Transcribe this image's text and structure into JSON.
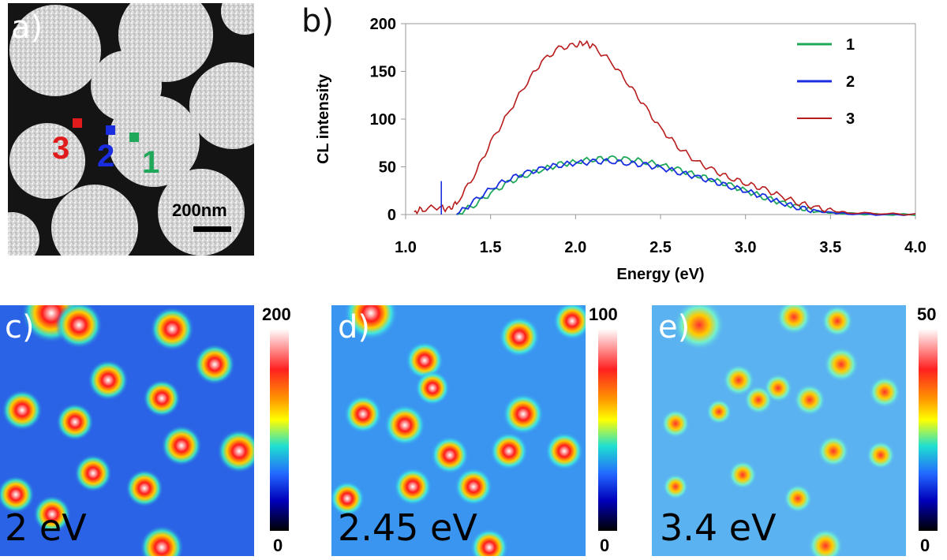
{
  "panels": {
    "a": {
      "label": "a)",
      "scale_bar_label": "200nm",
      "markers": [
        {
          "label": "3",
          "color": "#e11b1b"
        },
        {
          "label": "2",
          "color": "#1a2ee0"
        },
        {
          "label": "1",
          "color": "#1fa85a"
        }
      ]
    },
    "b": {
      "label": "b)"
    },
    "c": {
      "label": "c)",
      "energy": "2 eV",
      "cbar_max": "200",
      "cbar_min": "0"
    },
    "d": {
      "label": "d)",
      "energy": "2.45 eV",
      "cbar_max": "100",
      "cbar_min": "0"
    },
    "e": {
      "label": "e)",
      "energy": "3.4 eV",
      "cbar_max": "50",
      "cbar_min": "0"
    }
  },
  "chart_data": {
    "type": "line",
    "title": "",
    "xlabel": "Energy (eV)",
    "ylabel": "CL intensity",
    "xlim": [
      1.0,
      4.0
    ],
    "ylim": [
      0,
      200
    ],
    "xticks": [
      "1.0",
      "1.5",
      "2.0",
      "2.5",
      "3.0",
      "3.5",
      "4.0"
    ],
    "yticks": [
      "0",
      "50",
      "100",
      "150",
      "200"
    ],
    "legend_position": "top-right",
    "series": [
      {
        "name": "1",
        "color": "#1fa85a",
        "x": [
          1.3,
          1.4,
          1.5,
          1.6,
          1.7,
          1.8,
          1.9,
          2.0,
          2.1,
          2.2,
          2.3,
          2.4,
          2.5,
          2.6,
          2.7,
          2.8,
          2.9,
          3.0,
          3.1,
          3.2,
          3.3,
          3.4,
          3.5,
          3.6,
          3.8,
          4.0
        ],
        "y": [
          0,
          10,
          22,
          33,
          41,
          47,
          52,
          55,
          58,
          59,
          58,
          56,
          52,
          47,
          42,
          37,
          31,
          25,
          19,
          13,
          8,
          4,
          2,
          1,
          0,
          0
        ]
      },
      {
        "name": "2",
        "color": "#1a2ee0",
        "x": [
          1.3,
          1.4,
          1.5,
          1.6,
          1.7,
          1.8,
          1.9,
          2.0,
          2.1,
          2.2,
          2.3,
          2.4,
          2.5,
          2.6,
          2.7,
          2.8,
          2.9,
          3.0,
          3.1,
          3.2,
          3.3,
          3.4,
          3.5,
          3.6,
          3.8,
          4.0
        ],
        "y": [
          0,
          13,
          27,
          37,
          43,
          48,
          52,
          54,
          55,
          56,
          54,
          52,
          49,
          45,
          40,
          35,
          30,
          25,
          19,
          13,
          8,
          4,
          2,
          1,
          0,
          0
        ]
      },
      {
        "name": "3",
        "color": "#b81c1c",
        "x": [
          1.05,
          1.1,
          1.2,
          1.25,
          1.3,
          1.4,
          1.5,
          1.6,
          1.7,
          1.8,
          1.9,
          2.0,
          2.05,
          2.1,
          2.2,
          2.3,
          2.4,
          2.5,
          2.6,
          2.7,
          2.8,
          2.9,
          3.0,
          3.1,
          3.2,
          3.3,
          3.4,
          3.5,
          3.6,
          3.8,
          4.0
        ],
        "y": [
          3,
          6,
          8,
          5,
          12,
          40,
          75,
          105,
          135,
          160,
          174,
          178,
          180,
          176,
          162,
          140,
          115,
          90,
          72,
          57,
          47,
          39,
          33,
          27,
          20,
          13,
          8,
          4,
          2,
          1,
          0
        ]
      }
    ]
  }
}
